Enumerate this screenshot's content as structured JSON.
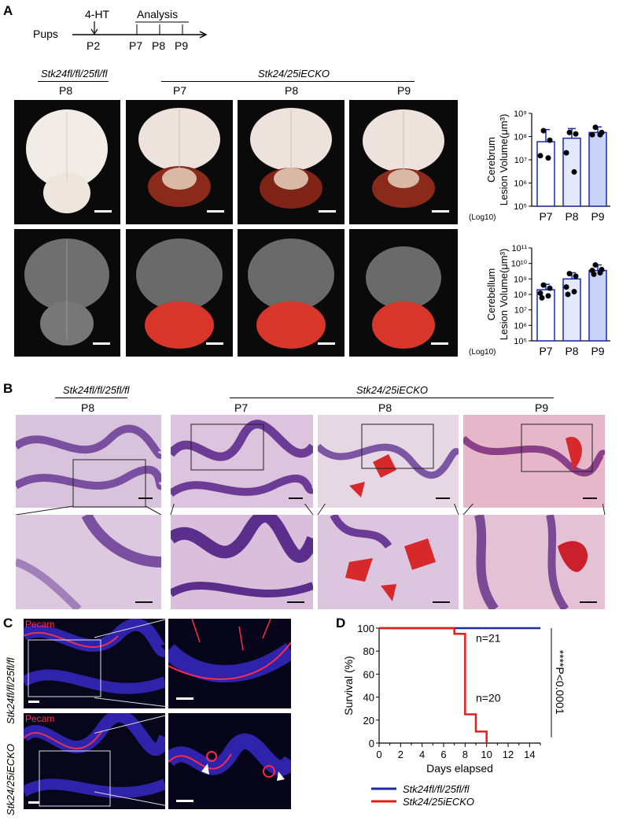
{
  "panels": {
    "A": "A",
    "B": "B",
    "C": "C",
    "D": "D"
  },
  "timeline": {
    "pups": "Pups",
    "injection": "4-HT",
    "analysis": "Analysis",
    "points": [
      "P2",
      "P7",
      "P8",
      "P9"
    ]
  },
  "genotypes": {
    "control": "Stk24fl/fl/25fl/fl",
    "ko": "Stk24/25iECKO"
  },
  "stage_labels": {
    "control": "P8",
    "ko": [
      "P7",
      "P8",
      "P9"
    ]
  },
  "pecam": "Pecam",
  "chart_data": [
    {
      "type": "bar",
      "title": "",
      "ylabel": "Cerebrum Lesion Volume(μm³)",
      "ylabel_lines": [
        "Cerebrum",
        "Lesion Volume(μm³)"
      ],
      "log_note": "(Log10)",
      "y_scale": "log",
      "ylim": [
        100000,
        1000000000
      ],
      "categories": [
        "P7",
        "P8",
        "P9"
      ],
      "values": [
        60000000,
        85000000,
        150000000
      ],
      "error_upper": [
        200000000,
        220000000,
        260000000
      ],
      "points": [
        [
          180000000,
          70000000,
          15000000,
          12000000
        ],
        [
          150000000,
          130000000,
          20000000,
          3000000
        ],
        [
          250000000,
          150000000,
          120000000,
          120000000
        ]
      ],
      "bar_colors": [
        "#ffffff",
        "#e4e8fb",
        "#c9d2f7"
      ],
      "ticks": [
        "10⁹",
        "10⁸",
        "10⁷",
        "10⁶",
        "10⁵"
      ]
    },
    {
      "type": "bar",
      "title": "",
      "ylabel": "Cerebellum Lesion Volume(μm³)",
      "ylabel_lines": [
        "Cerebellum",
        "Lesion Volume(μm³)"
      ],
      "log_note": "(Log10)",
      "y_scale": "log",
      "ylim": [
        100000,
        100000000000
      ],
      "categories": [
        "P7",
        "P8",
        "P9"
      ],
      "values": [
        200000000,
        1000000000,
        3500000000
      ],
      "error_upper": [
        450000000,
        2500000000,
        8000000000
      ],
      "points": [
        [
          400000000,
          250000000,
          120000000,
          80000000,
          60000000
        ],
        [
          2200000000,
          1500000000,
          300000000,
          150000000,
          100000000
        ],
        [
          8000000000,
          4000000000,
          3500000000,
          2500000000,
          2000000000
        ]
      ],
      "bar_colors": [
        "#ffffff",
        "#e4e8fb",
        "#c9d2f7"
      ],
      "ticks": [
        "10¹¹",
        "10¹⁰",
        "10⁹",
        "10⁸",
        "10⁷",
        "10⁶",
        "10⁵"
      ]
    },
    {
      "type": "line",
      "title": "",
      "xlabel": "Days elapsed",
      "ylabel": "Survival (%)",
      "xlim": [
        0,
        15
      ],
      "ylim": [
        0,
        100
      ],
      "xticks": [
        0,
        2,
        4,
        6,
        8,
        10,
        12,
        14
      ],
      "yticks": [
        0,
        20,
        40,
        60,
        80,
        100
      ],
      "series": [
        {
          "name": "Stk24fl/fl/25fl/fl",
          "color": "#1a2aa8",
          "x": [
            0,
            15
          ],
          "y": [
            100,
            100
          ],
          "n_label": "n=21"
        },
        {
          "name": "Stk24/25iECKO",
          "color": "#e0201b",
          "x": [
            0,
            7,
            7,
            8,
            8,
            9,
            9,
            10,
            10
          ],
          "y": [
            100,
            100,
            95,
            95,
            25,
            25,
            10,
            10,
            0
          ],
          "n_label": "n=20"
        }
      ],
      "stat": "****P<0.0001"
    }
  ]
}
